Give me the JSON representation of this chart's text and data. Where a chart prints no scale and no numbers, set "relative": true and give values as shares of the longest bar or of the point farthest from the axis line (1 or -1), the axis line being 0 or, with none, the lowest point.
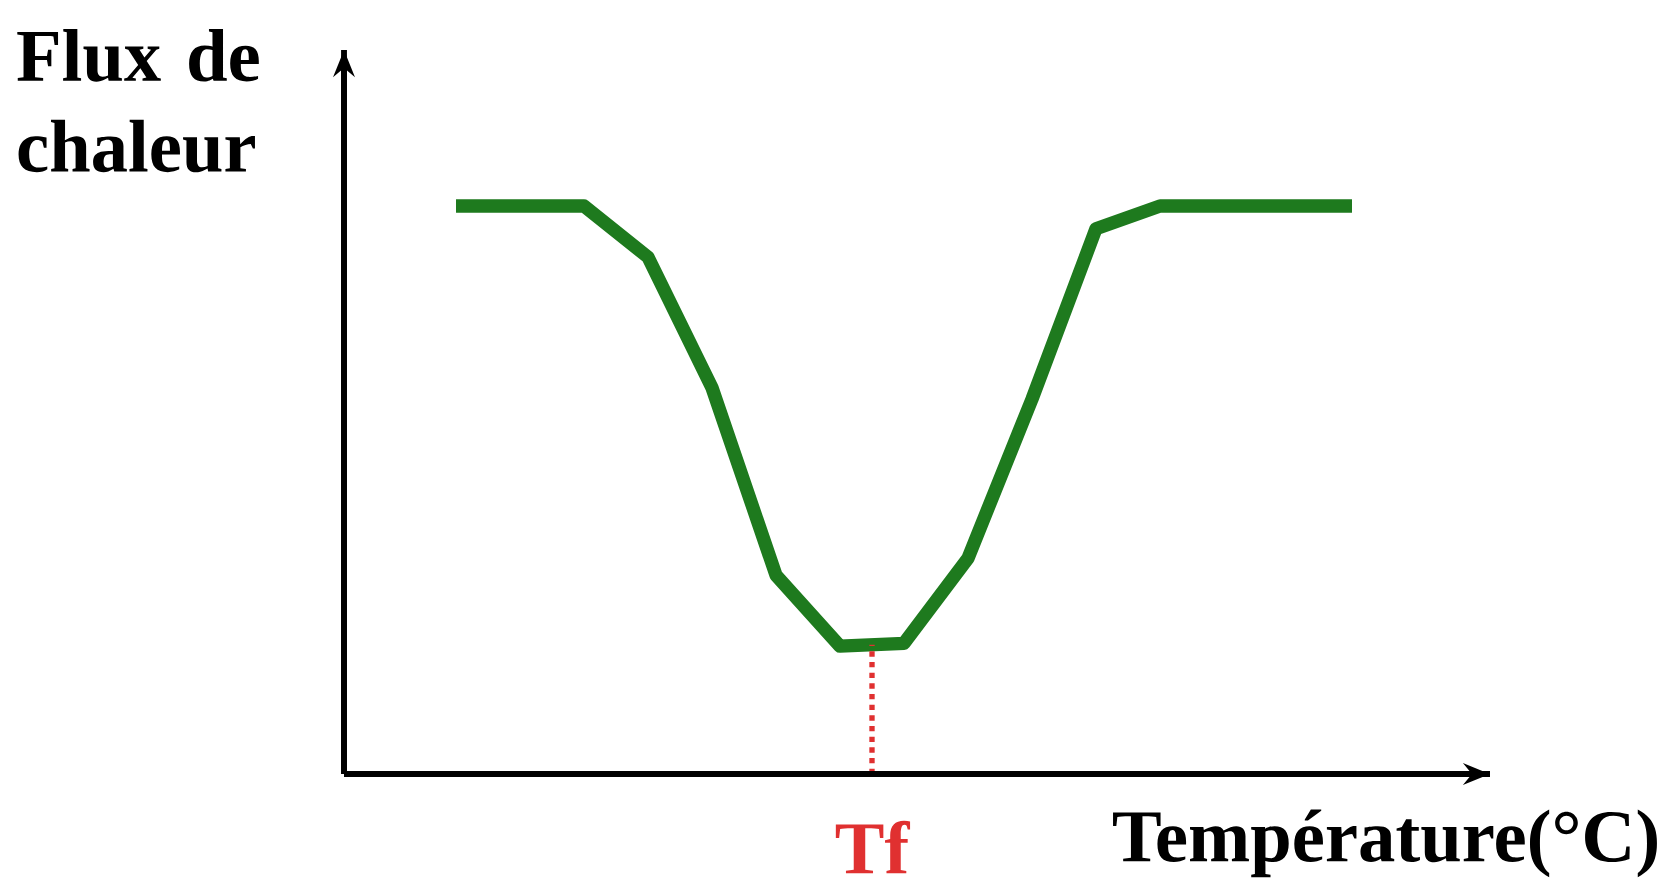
{
  "chart_data": {
    "type": "line",
    "relative": true,
    "xlabel": "Température(°C)",
    "ylabel": "Flux de chaleur",
    "categories": [
      null,
      null,
      null,
      null,
      null,
      null,
      null,
      null,
      null,
      null,
      null,
      null,
      null,
      null,
      null
    ],
    "values": [
      1,
      1,
      1,
      0.91,
      0.68,
      0.35,
      0.225,
      0.23,
      0.38,
      0.66,
      0.96,
      1,
      1,
      1,
      1
    ],
    "color": "#1e7a1e",
    "annotations": [
      "Tf"
    ]
  }
}
